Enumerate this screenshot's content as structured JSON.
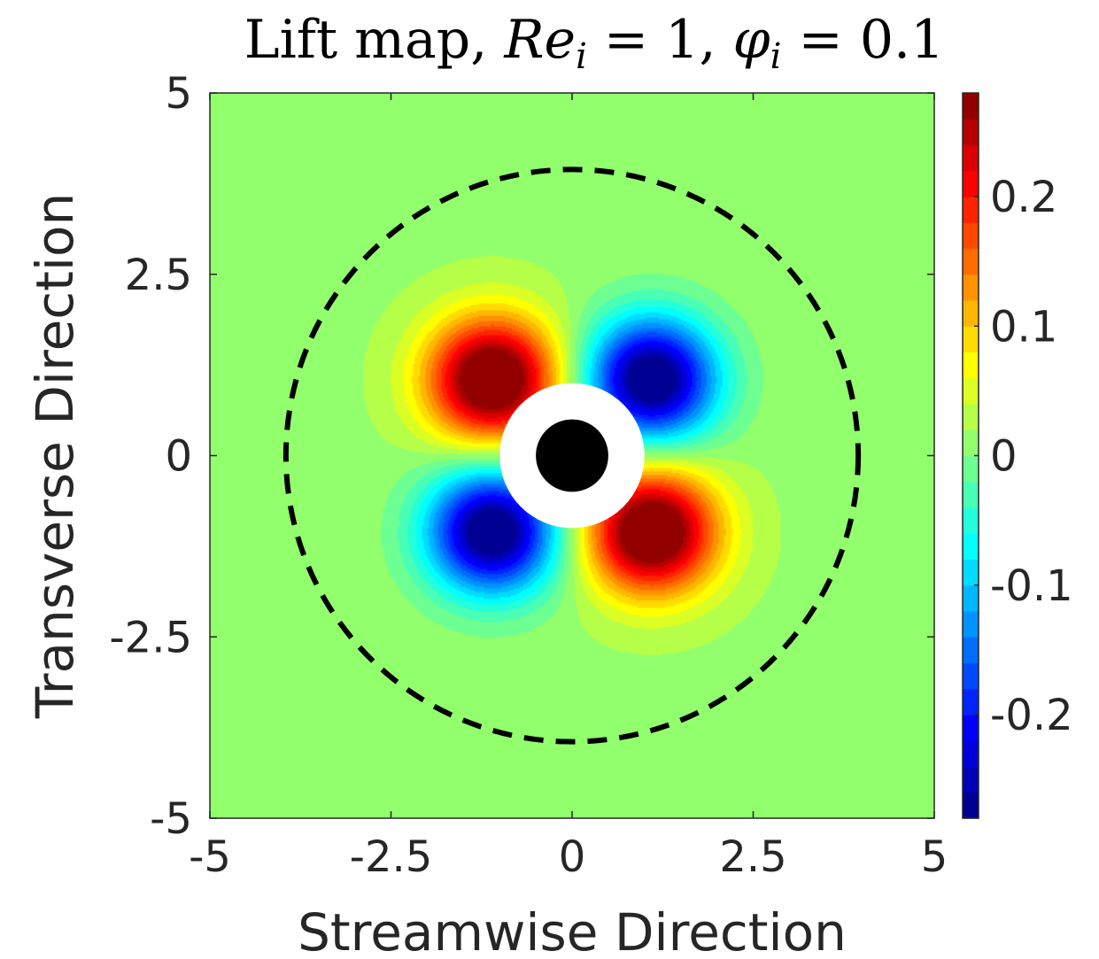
{
  "chart_data": {
    "type": "heatmap",
    "title": {
      "prefix": "Lift map, ",
      "re_symbol": "Re",
      "re_subscript": "i",
      "re_value": " = 1, ",
      "phi_symbol": "φ",
      "phi_subscript": "i",
      "phi_value": " = 0.1"
    },
    "xlabel": "Streamwise Direction",
    "ylabel": "Transverse Direction",
    "xlim": [
      -5,
      5
    ],
    "ylim": [
      -5,
      5
    ],
    "xticks": [
      {
        "value": -5,
        "label": "-5"
      },
      {
        "value": -2.5,
        "label": "-2.5"
      },
      {
        "value": 0,
        "label": "0"
      },
      {
        "value": 2.5,
        "label": "2.5"
      },
      {
        "value": 5,
        "label": "5"
      }
    ],
    "yticks": [
      {
        "value": 5,
        "label": "5"
      },
      {
        "value": 2.5,
        "label": "2.5"
      },
      {
        "value": 0,
        "label": "0"
      },
      {
        "value": -2.5,
        "label": "-2.5"
      },
      {
        "value": -5,
        "label": "-5"
      }
    ],
    "colorbar": {
      "colormap": "jet",
      "clim": [
        -0.28,
        0.28
      ],
      "levels": 28,
      "ticks": [
        {
          "value": 0.2,
          "label": "0.2"
        },
        {
          "value": 0.1,
          "label": "0.1"
        },
        {
          "value": 0,
          "label": "0"
        },
        {
          "value": -0.1,
          "label": "-0.1"
        },
        {
          "value": -0.2,
          "label": "-0.2"
        }
      ]
    },
    "background_value": 0.015,
    "lobes": [
      {
        "x": -1.1,
        "y": 1.05,
        "peak": 0.28
      },
      {
        "x": 1.1,
        "y": 1.05,
        "peak": -0.28
      },
      {
        "x": -1.1,
        "y": -1.05,
        "peak": -0.28
      },
      {
        "x": 1.1,
        "y": -1.05,
        "peak": 0.28
      }
    ],
    "excluded_ring": {
      "center": [
        0,
        0
      ],
      "radius": 1.0,
      "color": "#ffffff"
    },
    "particle": {
      "center": [
        0,
        0
      ],
      "radius": 0.5,
      "color": "#000000"
    },
    "dashed_circle": {
      "center": [
        0,
        0
      ],
      "radius": 3.95,
      "color": "#000000"
    },
    "grid": false
  }
}
